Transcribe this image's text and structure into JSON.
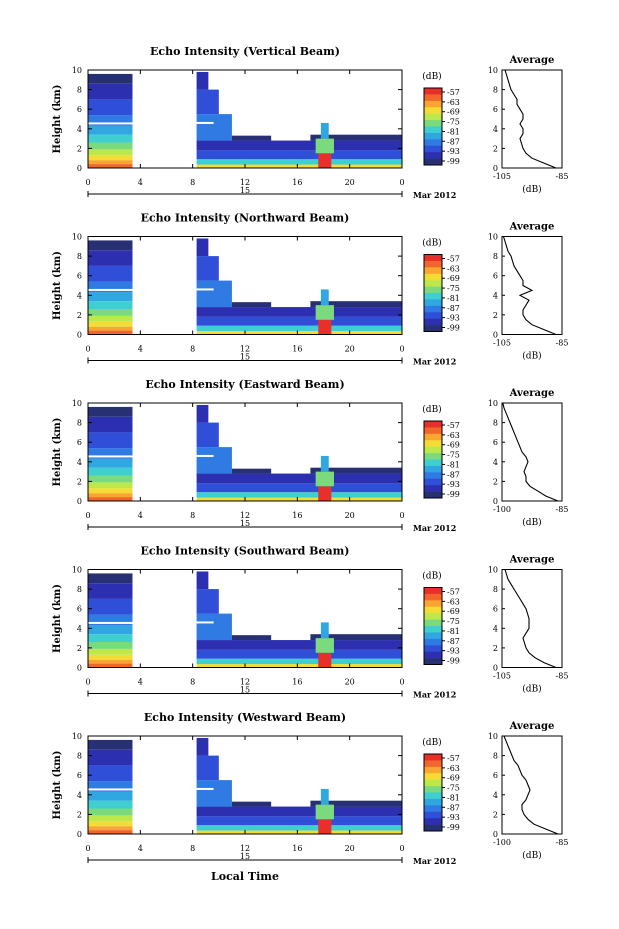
{
  "chart_data": {
    "type": "heatmap",
    "figure_xlabel": "Local Time",
    "x_ticks": [
      "0",
      "4",
      "8",
      "12",
      "16",
      "20",
      "0"
    ],
    "date_mark": "15",
    "date_suffix": "Mar 2012",
    "ylabel": "Height (km)",
    "y_ticks": [
      "0",
      "2",
      "4",
      "6",
      "8",
      "10"
    ],
    "colorbar": {
      "unit": "(dB)",
      "labels": [
        "-57",
        "-63",
        "-69",
        "-75",
        "-81",
        "-87",
        "-93",
        "-99"
      ],
      "colors": [
        "#e8302a",
        "#f0662d",
        "#f8a531",
        "#f4dc34",
        "#bde84c",
        "#7bd97e",
        "#3fcfd0",
        "#31a7e2",
        "#2f7be3",
        "#2f4fd9",
        "#2c2fb0",
        "#283074"
      ]
    },
    "panels": [
      {
        "title": "Echo Intensity (Vertical Beam)",
        "avg_title": "Average",
        "avg_xlabel": "(dB)",
        "avg_xticks": [
          "-105",
          "-85"
        ],
        "avg_xlim": [
          -105,
          -85
        ],
        "avg_yticks": [
          "0",
          "2",
          "4",
          "6",
          "8",
          "10"
        ],
        "avg_profile": [
          [
            -87,
            0
          ],
          [
            -91,
            0.5
          ],
          [
            -95,
            1
          ],
          [
            -97,
            1.5
          ],
          [
            -98,
            2
          ],
          [
            -98.5,
            2.5
          ],
          [
            -99,
            3
          ],
          [
            -98,
            3.5
          ],
          [
            -98,
            4
          ],
          [
            -99,
            4.5
          ],
          [
            -98,
            5
          ],
          [
            -98,
            5.5
          ],
          [
            -99,
            6
          ],
          [
            -100,
            6.5
          ],
          [
            -100,
            7
          ],
          [
            -101,
            7.5
          ],
          [
            -102,
            8
          ],
          [
            -102.5,
            8.5
          ],
          [
            -103,
            9
          ],
          [
            -103.5,
            9.5
          ],
          [
            -104,
            10
          ]
        ]
      },
      {
        "title": "Echo Intensity (Northward Beam)",
        "avg_title": "Average",
        "avg_xlabel": "(dB)",
        "avg_xticks": [
          "-105",
          "-85"
        ],
        "avg_xlim": [
          -105,
          -85
        ],
        "avg_yticks": [
          "0",
          "2",
          "4",
          "6",
          "8",
          "10"
        ],
        "avg_profile": [
          [
            -87,
            0
          ],
          [
            -91,
            0.5
          ],
          [
            -95,
            1
          ],
          [
            -97,
            1.5
          ],
          [
            -98,
            2
          ],
          [
            -98,
            2.5
          ],
          [
            -97,
            3
          ],
          [
            -96,
            3.5
          ],
          [
            -99,
            4
          ],
          [
            -95,
            4.5
          ],
          [
            -98,
            5
          ],
          [
            -98,
            5.5
          ],
          [
            -99,
            6
          ],
          [
            -100,
            6.5
          ],
          [
            -101,
            7
          ],
          [
            -101.5,
            7.5
          ],
          [
            -102,
            8
          ],
          [
            -103,
            8.5
          ],
          [
            -103.5,
            9
          ],
          [
            -104,
            9.5
          ],
          [
            -104.5,
            10
          ]
        ]
      },
      {
        "title": "Echo Intensity (Eastward Beam)",
        "avg_title": "Average",
        "avg_xlabel": "(dB)",
        "avg_xticks": [
          "-100",
          "-85"
        ],
        "avg_xlim": [
          -100,
          -85
        ],
        "avg_yticks": [
          "0",
          "2",
          "4",
          "6",
          "8",
          "10"
        ],
        "avg_profile": [
          [
            -86,
            0
          ],
          [
            -89,
            0.5
          ],
          [
            -91,
            1
          ],
          [
            -93,
            1.5
          ],
          [
            -94,
            2
          ],
          [
            -94,
            2.5
          ],
          [
            -94.5,
            3
          ],
          [
            -94,
            3.5
          ],
          [
            -93.5,
            4
          ],
          [
            -94,
            4.5
          ],
          [
            -95,
            5
          ],
          [
            -95.5,
            5.5
          ],
          [
            -96,
            6
          ],
          [
            -96.5,
            6.5
          ],
          [
            -97,
            7
          ],
          [
            -97.5,
            7.5
          ],
          [
            -98,
            8
          ],
          [
            -98.5,
            8.5
          ],
          [
            -99,
            9
          ],
          [
            -99.5,
            9.5
          ],
          [
            -99.8,
            10
          ]
        ]
      },
      {
        "title": "Echo Intensity (Southward Beam)",
        "avg_title": "Average",
        "avg_xlabel": "(dB)",
        "avg_xticks": [
          "-105",
          "-85"
        ],
        "avg_xlim": [
          -105,
          -85
        ],
        "avg_yticks": [
          "0",
          "2",
          "4",
          "6",
          "8",
          "10"
        ],
        "avg_profile": [
          [
            -87,
            0
          ],
          [
            -91,
            0.5
          ],
          [
            -94,
            1
          ],
          [
            -96,
            1.5
          ],
          [
            -97,
            2
          ],
          [
            -97.5,
            2.5
          ],
          [
            -98,
            3
          ],
          [
            -97,
            3.5
          ],
          [
            -96,
            4
          ],
          [
            -96,
            4.5
          ],
          [
            -96,
            5
          ],
          [
            -96.5,
            5.5
          ],
          [
            -97,
            6
          ],
          [
            -98,
            6.5
          ],
          [
            -99,
            7
          ],
          [
            -100,
            7.5
          ],
          [
            -101,
            8
          ],
          [
            -102,
            8.5
          ],
          [
            -103,
            9
          ],
          [
            -103.5,
            9.5
          ],
          [
            -104,
            10
          ]
        ]
      },
      {
        "title": "Echo Intensity (Westward Beam)",
        "avg_title": "Average",
        "avg_xlabel": "(dB)",
        "avg_xticks": [
          "-100",
          "-85"
        ],
        "avg_xlim": [
          -100,
          -85
        ],
        "avg_yticks": [
          "0",
          "2",
          "4",
          "6",
          "8",
          "10"
        ],
        "avg_profile": [
          [
            -86,
            0
          ],
          [
            -89,
            0.5
          ],
          [
            -92,
            1
          ],
          [
            -93.5,
            1.5
          ],
          [
            -94.5,
            2
          ],
          [
            -95,
            2.5
          ],
          [
            -95,
            3
          ],
          [
            -94,
            3.5
          ],
          [
            -93.5,
            4
          ],
          [
            -93,
            4.5
          ],
          [
            -93.5,
            5
          ],
          [
            -94,
            5.5
          ],
          [
            -95,
            6
          ],
          [
            -95.5,
            6.5
          ],
          [
            -96,
            7
          ],
          [
            -97,
            7.5
          ],
          [
            -97.5,
            8
          ],
          [
            -98,
            8.5
          ],
          [
            -98.5,
            9
          ],
          [
            -99,
            9.5
          ],
          [
            -99.5,
            10
          ]
        ]
      }
    ]
  }
}
